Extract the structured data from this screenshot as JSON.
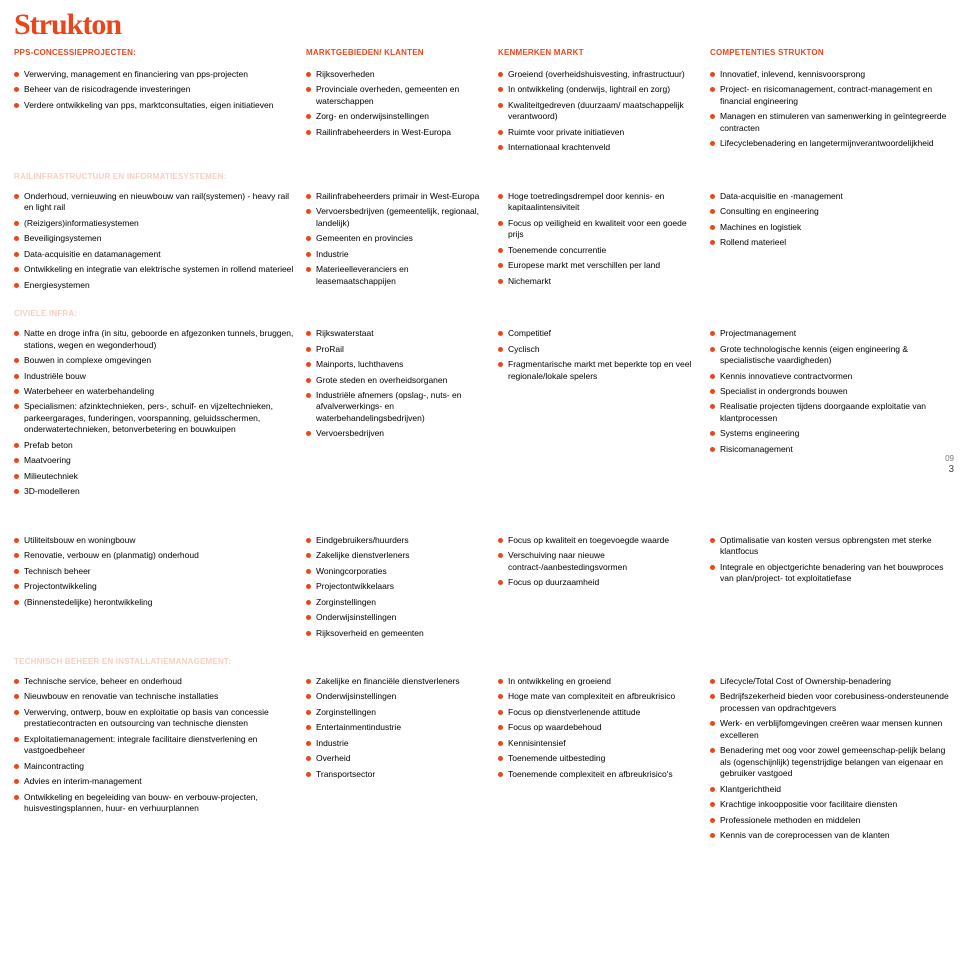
{
  "colors": {
    "accent": "#e9461c",
    "header_text": "#e9461c",
    "section_label": "#f7cfc1",
    "bullet": "#e9461c",
    "text": "#000000",
    "bg": "#ffffff"
  },
  "typography": {
    "logo_fontsize": 30,
    "header_fontsize": 8,
    "body_fontsize": 8.5,
    "section_label_fontsize": 8
  },
  "logo": "Strukton",
  "page_badge": {
    "small": "09",
    "big": "3"
  },
  "columns": {
    "c1": "PPS-CONCESSIEPROJECTEN:",
    "c2": "MARKTGEBIEDEN/ KLANTEN",
    "c3": "KENMERKEN MARKT",
    "c4": "COMPETENTIES STRUKTON"
  },
  "sections": [
    {
      "label": null,
      "cols": [
        [
          "Verwerving, management en financiering van pps-projecten",
          "Beheer van de risicodragende investeringen",
          "Verdere ontwikkeling van pps, marktconsultaties, eigen initiatieven"
        ],
        [
          "Rijksoverheden",
          "Provinciale overheden, gemeenten en waterschappen",
          "Zorg- en onderwijsinstellingen",
          "Railinfrabeheerders in West-Europa"
        ],
        [
          "Groeiend (overheidshuisvesting, infrastructuur)",
          "In ontwikkeling (onderwijs, lightrail en zorg)",
          "Kwaliteitgedreven (duurzaam/ maatschappelijk verantwoord)",
          "Ruimte voor private initiatieven",
          "Internationaal krachtenveld"
        ],
        [
          "Innovatief, inlevend, kennisvoorsprong",
          "Project- en risicomanagement, contract-management en financial engineering",
          "Managen en stimuleren van samenwerking in geïntegreerde contracten",
          "Lifecyclebenadering en langetermijnverantwoordelijkheid"
        ]
      ]
    },
    {
      "label": "RAILINFRASTRUCTUUR EN INFORMATIESYSTEMEN:",
      "cols": [
        [
          "Onderhoud, vernieuwing en nieuwbouw van rail(systemen) - heavy rail en light rail",
          "(Reizigers)informatiesystemen",
          "Beveiligingsystemen",
          "Data-acquisitie en datamanagement",
          "Ontwikkeling en integratie van elektrische systemen in rollend materieel",
          "Energiesystemen"
        ],
        [
          "Railinfrabeheerders primair in West-Europa",
          "Vervoersbedrijven (gemeentelijk, regionaal, landelijk)",
          "Gemeenten en provincies",
          "Industrie",
          "Materieelleveranciers en leasemaatschappijen"
        ],
        [
          "Hoge toetredingsdrempel door kennis- en kapitaalintensiviteit",
          "Focus op veiligheid en kwaliteit voor een goede prijs",
          "Toenemende concurrentie",
          "Europese markt met verschillen per land",
          "Nichemarkt"
        ],
        [
          "Data-acquisitie en -management",
          "Consulting en engineering",
          "Machines en logistiek",
          "Rollend materieel"
        ]
      ]
    },
    {
      "label": "CIVIELE INFRA:",
      "cols": [
        [
          "Natte en droge infra (in situ, geboorde en afgezonken tunnels, bruggen, stations, wegen en wegonderhoud)",
          "Bouwen in complexe omgevingen",
          "Industriële bouw",
          "Waterbeheer en waterbehandeling",
          "Specialismen: afzinktechnieken, pers-, schuif- en vijzeltechnieken, parkeergarages, funderingen, voorspanning, geluidsschermen, onderwatertechnieken, betonverbetering en bouwkuipen",
          "Prefab beton",
          "Maatvoering",
          "Milieutechniek",
          "3D-modelleren"
        ],
        [
          "Rijkswaterstaat",
          "ProRail",
          "Mainports, luchthavens",
          "Grote steden en overheidsorganen",
          "Industriële afnemers (opslag-, nuts- en afvalverwerkings- en waterbehandelingsbedrijven)",
          "Vervoersbedrijven"
        ],
        [
          "Competitief",
          "Cyclisch",
          "Fragmentarische markt met beperkte top en veel regionale/lokale spelers"
        ],
        [
          "Projectmanagement",
          "Grote technologische kennis (eigen engineering & specialistische vaardigheden)",
          "Kennis innovatieve contractvormen",
          "Specialist in ondergronds bouwen",
          "Realisatie projecten tijdens doorgaande exploitatie van klantprocessen",
          "Systems engineering",
          "Risicomanagement"
        ]
      ]
    },
    {
      "label": "",
      "cols": [
        [
          "Utiliteitsbouw en woningbouw",
          "Renovatie, verbouw en (planmatig) onderhoud",
          "Technisch beheer",
          "Projectontwikkeling",
          "(Binnenstedelijke) herontwikkeling"
        ],
        [
          "Eindgebruikers/huurders",
          "Zakelijke dienstverleners",
          "Woningcorporaties",
          "Projectontwikkelaars",
          "Zorginstellingen",
          "Onderwijsinstellingen",
          "Rijksoverheid en gemeenten"
        ],
        [
          "Focus op kwaliteit en toegevoegde waarde",
          "Verschuiving naar nieuwe contract-/aanbestedingsvormen",
          "Focus op duurzaamheid"
        ],
        [
          "Optimalisatie van kosten versus opbrengsten met sterke klantfocus",
          "Integrale en objectgerichte benadering van het bouwproces van plan/project- tot exploitatiefase"
        ]
      ]
    },
    {
      "label": "TECHNISCH BEHEER EN INSTALLATIEMANAGEMENT:",
      "cols": [
        [
          "Technische service, beheer en onderhoud",
          "Nieuwbouw en renovatie van technische installaties",
          "Verwerving, ontwerp, bouw en exploitatie op basis van concessie prestatiecontracten en outsourcing van technische diensten",
          "Exploitatiemanagement: integrale facilitaire dienstverlening en vastgoedbeheer",
          "Maincontracting",
          "Advies en interim-management",
          "Ontwikkeling en begeleiding van bouw- en verbouw-projecten, huisvestingsplannen, huur- en verhuurplannen"
        ],
        [
          "Zakelijke en financiële dienstverleners",
          "Onderwijsinstellingen",
          "Zorginstellingen",
          "Entertainmentindustrie",
          "Industrie",
          "Overheid",
          "Transportsector"
        ],
        [
          "In ontwikkeling en groeiend",
          "Hoge mate van complexiteit en afbreukrisico",
          "Focus op dienstverlenende attitude",
          "Focus op waardebehoud",
          "Kennisintensief",
          "Toenemende uitbesteding",
          "Toenemende complexiteit en afbreukrisico's"
        ],
        [
          "Lifecycle/Total Cost of Ownership-benadering",
          "Bedrijfszekerheid bieden voor corebusiness-ondersteunende processen van opdrachtgevers",
          "Werk- en verblijfomgevingen creëren waar mensen kunnen excelleren",
          "Benadering met oog voor zowel gemeenschap-pelijk belang als (ogenschijnlijk) tegenstrijdige belangen van eigenaar en gebruiker vastgoed",
          "Klantgerichtheid",
          "Krachtige inkooppositie voor facilitaire diensten",
          "Professionele methoden en middelen",
          "Kennis van de coreprocessen van de klanten"
        ]
      ]
    }
  ]
}
